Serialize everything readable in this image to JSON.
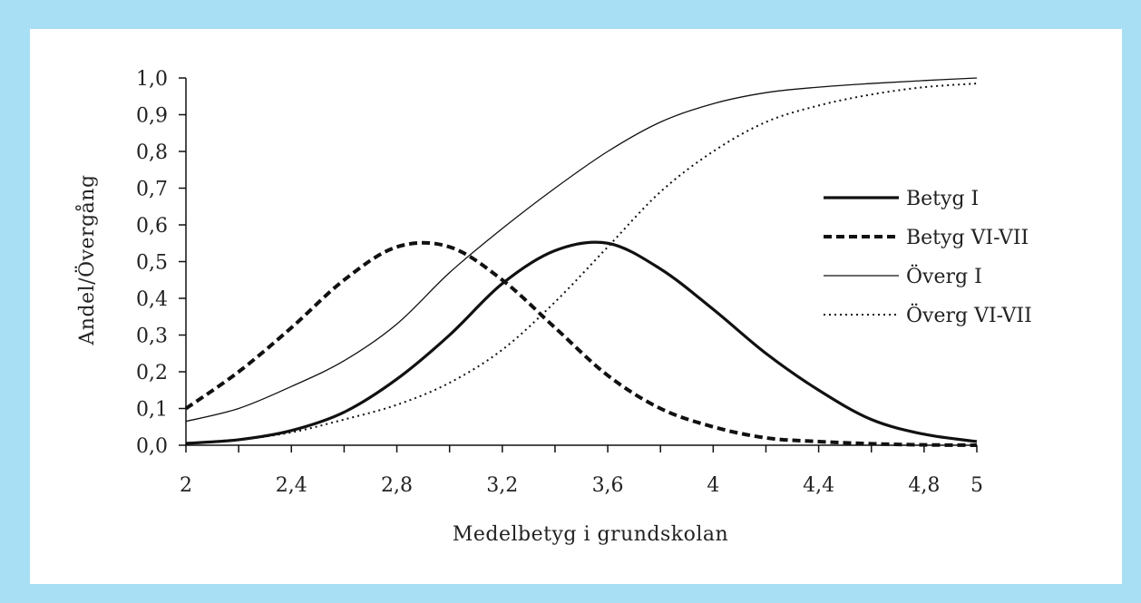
{
  "chart_data": {
    "type": "line",
    "xlabel": "Medelbetyg i grundskolan",
    "ylabel": "Andel/Övergång",
    "xlim": [
      2,
      5
    ],
    "ylim": [
      0,
      1
    ],
    "x_ticks": [
      "2",
      "2,4",
      "2,8",
      "3,2",
      "3,6",
      "4",
      "4,4",
      "4,8",
      "5"
    ],
    "x_tick_values": [
      2,
      2.4,
      2.8,
      3.2,
      3.6,
      4,
      4.4,
      4.8,
      5
    ],
    "y_ticks": [
      "0,0",
      "0,1",
      "0,2",
      "0,3",
      "0,4",
      "0,5",
      "0,6",
      "0,7",
      "0,8",
      "0,9",
      "1,0"
    ],
    "y_tick_values": [
      0,
      0.1,
      0.2,
      0.3,
      0.4,
      0.5,
      0.6,
      0.7,
      0.8,
      0.9,
      1.0
    ],
    "grid": false,
    "legend_position": "right",
    "x": [
      2.0,
      2.2,
      2.4,
      2.6,
      2.8,
      3.0,
      3.2,
      3.4,
      3.6,
      3.8,
      4.0,
      4.2,
      4.4,
      4.6,
      4.8,
      5.0
    ],
    "series": [
      {
        "name": "Betyg I",
        "style": "solid-thick",
        "values": [
          0.005,
          0.015,
          0.04,
          0.09,
          0.18,
          0.3,
          0.44,
          0.53,
          0.55,
          0.48,
          0.37,
          0.25,
          0.15,
          0.07,
          0.03,
          0.01
        ]
      },
      {
        "name": "Betyg VI-VII",
        "style": "dashed-thick",
        "values": [
          0.1,
          0.2,
          0.32,
          0.45,
          0.54,
          0.54,
          0.45,
          0.32,
          0.19,
          0.1,
          0.05,
          0.02,
          0.01,
          0.004,
          0.001,
          0.0
        ]
      },
      {
        "name": "Överg I",
        "style": "solid-thin",
        "values": [
          0.065,
          0.1,
          0.16,
          0.23,
          0.33,
          0.47,
          0.59,
          0.7,
          0.8,
          0.88,
          0.93,
          0.96,
          0.975,
          0.985,
          0.993,
          1.0
        ]
      },
      {
        "name": "Överg VI-VII",
        "style": "dotted",
        "values": [
          0.005,
          0.015,
          0.035,
          0.07,
          0.11,
          0.17,
          0.26,
          0.39,
          0.54,
          0.69,
          0.8,
          0.88,
          0.925,
          0.955,
          0.975,
          0.985
        ]
      }
    ]
  },
  "colors": {
    "background": "#a9dff5",
    "panel": "#ffffff",
    "ink": "#111111"
  }
}
